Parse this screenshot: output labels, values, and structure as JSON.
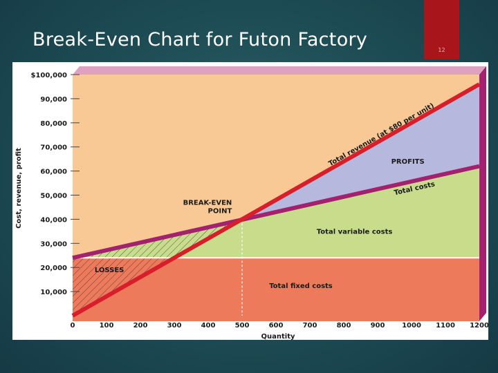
{
  "slide": {
    "title": "Break-Even Chart for Futon Factory",
    "number": "12",
    "accent_color": "#a8161b"
  },
  "chart_data": {
    "type": "area",
    "title": "",
    "xlabel": "Quantity",
    "ylabel": "Cost, revenue, profit",
    "xlim": [
      0,
      1200
    ],
    "ylim": [
      0,
      100000
    ],
    "x_ticks": [
      0,
      100,
      200,
      300,
      400,
      500,
      600,
      700,
      800,
      900,
      1000,
      1100,
      1200
    ],
    "x_tick_labels": [
      "0",
      "100",
      "200",
      "300",
      "400",
      "500",
      "600",
      "700",
      "800",
      "900",
      "1000",
      "1100",
      "1200"
    ],
    "y_ticks": [
      10000,
      20000,
      30000,
      40000,
      50000,
      60000,
      70000,
      80000,
      90000,
      100000
    ],
    "y_tick_labels": [
      "10,000",
      "20,000",
      "30,000",
      "40,000",
      "50,000",
      "60,000",
      "70,000",
      "80,000",
      "90,000",
      "$100,000"
    ],
    "series": [
      {
        "name": "Total revenue (at $80 per unit)",
        "x": [
          0,
          1200
        ],
        "values": [
          0,
          96000
        ],
        "color": "#d81e2a"
      },
      {
        "name": "Total costs",
        "x": [
          0,
          1200
        ],
        "values": [
          24000,
          62000
        ],
        "color": "#a3216e"
      },
      {
        "name": "Total fixed costs",
        "x": [
          0,
          1200
        ],
        "values": [
          24000,
          24000
        ],
        "color": "#ffffff"
      }
    ],
    "regions": {
      "fixed_costs": {
        "label": "Total fixed costs",
        "color": "#ee7a5c"
      },
      "variable_costs": {
        "label": "Total variable costs",
        "color": "#c8dc8c"
      },
      "profits": {
        "label": "PROFITS",
        "color": "#b6b8de"
      },
      "losses": {
        "label": "LOSSES"
      },
      "background": {
        "color": "#f8c994"
      },
      "top_band": {
        "color": "#dfa1c0"
      }
    },
    "break_even": {
      "label_line1": "BREAK-EVEN",
      "label_line2": "POINT",
      "x": 500,
      "y": 40000
    },
    "annotations": {
      "total_costs": "Total costs",
      "total_revenue": "Total revenue (at $80 per unit)"
    }
  }
}
